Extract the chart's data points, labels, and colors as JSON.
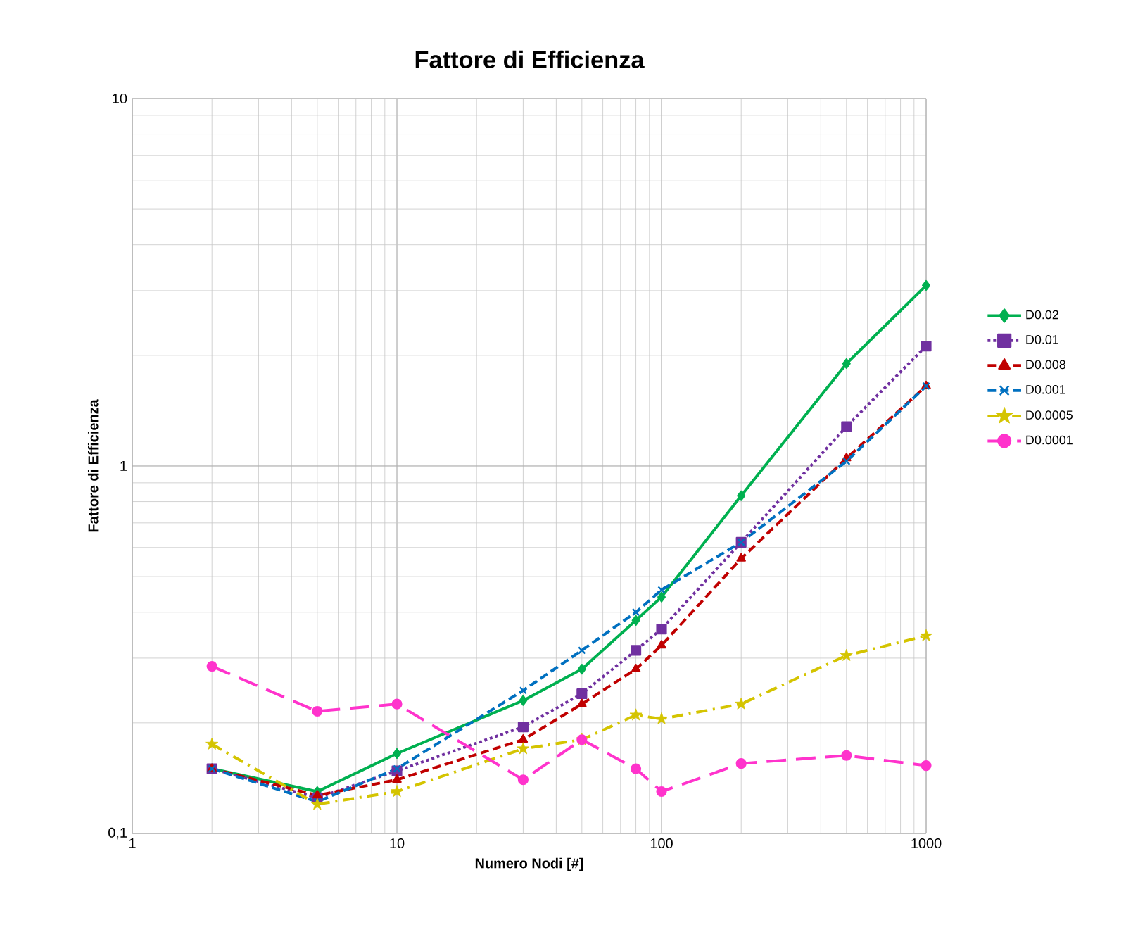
{
  "chart_data": {
    "type": "line",
    "title": "Fattore di Efficienza",
    "xlabel": "Numero Nodi [#]",
    "ylabel": "Fattore di Efficienza",
    "log": "xy",
    "grid": true,
    "legend": "right",
    "x": [
      2,
      5,
      10,
      30,
      50,
      80,
      100,
      200,
      500,
      1000
    ],
    "xlim": [
      1,
      1000
    ],
    "ylim": [
      0.1,
      10
    ],
    "xticks": [
      1,
      10,
      100,
      1000
    ],
    "yticks": [
      {
        "value": 0.1,
        "label": "0,1"
      },
      1,
      10
    ],
    "series": [
      {
        "name": "D0.02",
        "color": "#00b050",
        "marker": "diamond",
        "line_style": "solid",
        "values": [
          0.15,
          0.13,
          0.165,
          0.23,
          0.28,
          0.38,
          0.44,
          0.83,
          1.9,
          3.1
        ]
      },
      {
        "name": "D0.01",
        "color": "#7030a0",
        "marker": "square",
        "line_style": "dotted",
        "values": [
          0.15,
          0.125,
          0.148,
          0.195,
          0.24,
          0.315,
          0.36,
          0.62,
          1.28,
          2.12
        ]
      },
      {
        "name": "D0.008",
        "color": "#c00000",
        "marker": "triangle",
        "line_style": "dashed",
        "values": [
          0.15,
          0.127,
          0.14,
          0.18,
          0.225,
          0.28,
          0.325,
          0.56,
          1.05,
          1.65
        ]
      },
      {
        "name": "D0.001",
        "color": "#0070c0",
        "marker": "cross",
        "line_style": "dashed",
        "values": [
          0.15,
          0.122,
          0.15,
          0.245,
          0.315,
          0.4,
          0.46,
          0.62,
          1.03,
          1.65
        ]
      },
      {
        "name": "D0.0005",
        "color": "#d4c400",
        "marker": "star",
        "line_style": "dashdot",
        "values": [
          0.175,
          0.12,
          0.13,
          0.17,
          0.18,
          0.21,
          0.205,
          0.225,
          0.305,
          0.345
        ]
      },
      {
        "name": "D0.0001",
        "color": "#ff33cc",
        "marker": "circle",
        "line_style": "longdashed",
        "values": [
          0.285,
          0.215,
          0.225,
          0.14,
          0.18,
          0.15,
          0.13,
          0.155,
          0.163,
          0.153
        ]
      }
    ]
  }
}
